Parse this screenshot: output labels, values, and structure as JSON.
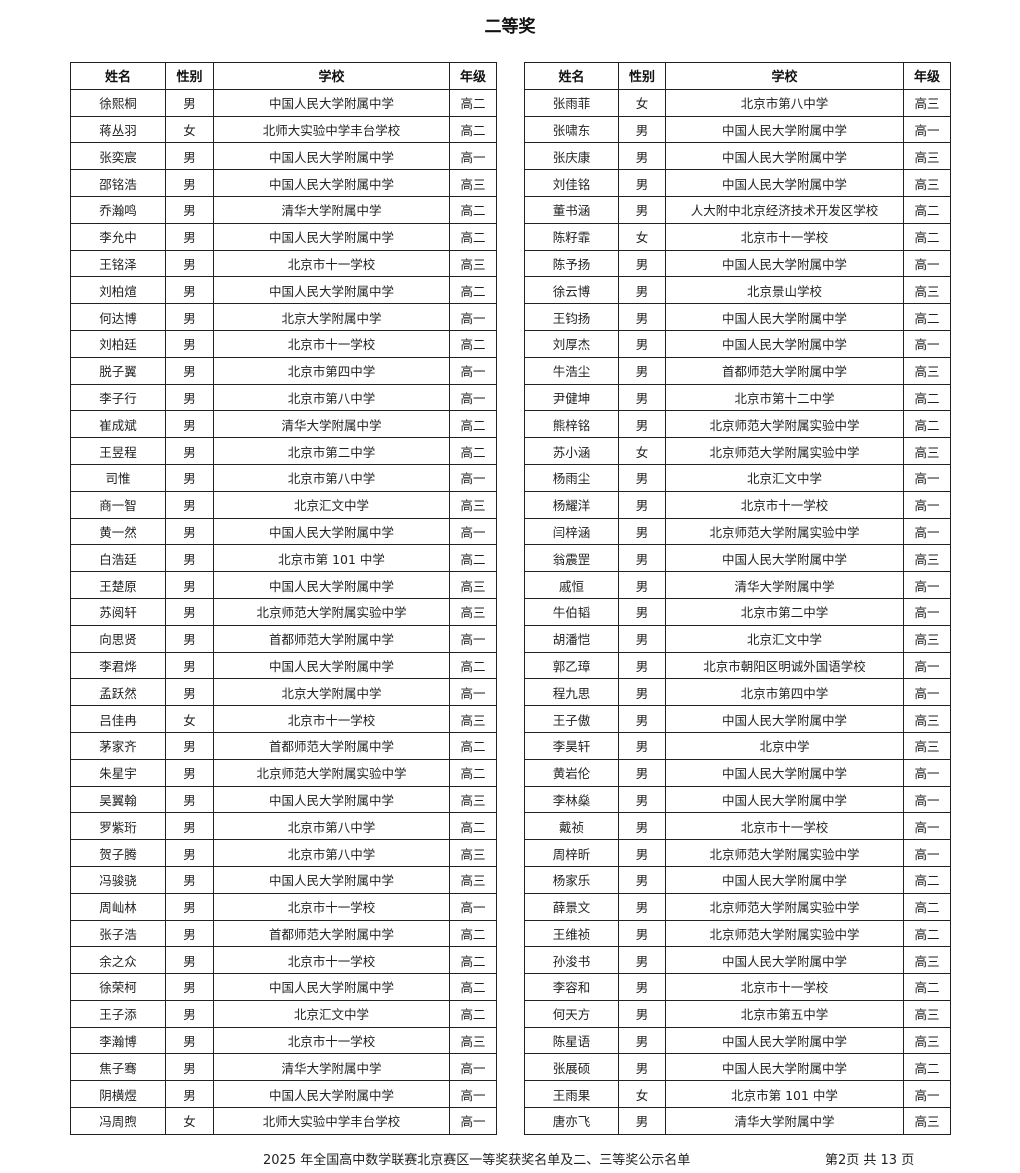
{
  "title": "二等奖",
  "headers": [
    "姓名",
    "性别",
    "学校",
    "年级"
  ],
  "left_rows": [
    [
      "徐熙桐",
      "男",
      "中国人民大学附属中学",
      "高二"
    ],
    [
      "蒋丛羽",
      "女",
      "北师大实验中学丰台学校",
      "高二"
    ],
    [
      "张奕宸",
      "男",
      "中国人民大学附属中学",
      "高一"
    ],
    [
      "邵铭浩",
      "男",
      "中国人民大学附属中学",
      "高三"
    ],
    [
      "乔瀚鸣",
      "男",
      "清华大学附属中学",
      "高二"
    ],
    [
      "李允中",
      "男",
      "中国人民大学附属中学",
      "高二"
    ],
    [
      "王铭泽",
      "男",
      "北京市十一学校",
      "高三"
    ],
    [
      "刘柏煊",
      "男",
      "中国人民大学附属中学",
      "高二"
    ],
    [
      "何达博",
      "男",
      "北京大学附属中学",
      "高一"
    ],
    [
      "刘柏廷",
      "男",
      "北京市十一学校",
      "高二"
    ],
    [
      "脱子翼",
      "男",
      "北京市第四中学",
      "高一"
    ],
    [
      "李子行",
      "男",
      "北京市第八中学",
      "高一"
    ],
    [
      "崔成斌",
      "男",
      "清华大学附属中学",
      "高二"
    ],
    [
      "王昱程",
      "男",
      "北京市第二中学",
      "高二"
    ],
    [
      "司惟",
      "男",
      "北京市第八中学",
      "高一"
    ],
    [
      "商一智",
      "男",
      "北京汇文中学",
      "高三"
    ],
    [
      "黄一然",
      "男",
      "中国人民大学附属中学",
      "高一"
    ],
    [
      "白浩廷",
      "男",
      "北京市第 101 中学",
      "高二"
    ],
    [
      "王楚原",
      "男",
      "中国人民大学附属中学",
      "高三"
    ],
    [
      "苏阅轩",
      "男",
      "北京师范大学附属实验中学",
      "高三"
    ],
    [
      "向思贤",
      "男",
      "首都师范大学附属中学",
      "高一"
    ],
    [
      "李君烨",
      "男",
      "中国人民大学附属中学",
      "高二"
    ],
    [
      "孟跃然",
      "男",
      "北京大学附属中学",
      "高一"
    ],
    [
      "吕佳冉",
      "女",
      "北京市十一学校",
      "高三"
    ],
    [
      "茅家齐",
      "男",
      "首都师范大学附属中学",
      "高二"
    ],
    [
      "朱星宇",
      "男",
      "北京师范大学附属实验中学",
      "高二"
    ],
    [
      "吴翼翰",
      "男",
      "中国人民大学附属中学",
      "高三"
    ],
    [
      "罗紫珩",
      "男",
      "北京市第八中学",
      "高二"
    ],
    [
      "贺子腾",
      "男",
      "北京市第八中学",
      "高三"
    ],
    [
      "冯骏骁",
      "男",
      "中国人民大学附属中学",
      "高三"
    ],
    [
      "周屾林",
      "男",
      "北京市十一学校",
      "高一"
    ],
    [
      "张子浩",
      "男",
      "首都师范大学附属中学",
      "高二"
    ],
    [
      "余之众",
      "男",
      "北京市十一学校",
      "高二"
    ],
    [
      "徐荣柯",
      "男",
      "中国人民大学附属中学",
      "高二"
    ],
    [
      "王子添",
      "男",
      "北京汇文中学",
      "高二"
    ],
    [
      "李瀚博",
      "男",
      "北京市十一学校",
      "高三"
    ],
    [
      "焦子骞",
      "男",
      "清华大学附属中学",
      "高一"
    ],
    [
      "阴横煜",
      "男",
      "中国人民大学附属中学",
      "高一"
    ],
    [
      "冯周煦",
      "女",
      "北师大实验中学丰台学校",
      "高一"
    ]
  ],
  "right_rows": [
    [
      "张雨菲",
      "女",
      "北京市第八中学",
      "高三"
    ],
    [
      "张啸东",
      "男",
      "中国人民大学附属中学",
      "高一"
    ],
    [
      "张庆康",
      "男",
      "中国人民大学附属中学",
      "高三"
    ],
    [
      "刘佳铭",
      "男",
      "中国人民大学附属中学",
      "高三"
    ],
    [
      "董书涵",
      "男",
      "人大附中北京经济技术开发区学校",
      "高二"
    ],
    [
      "陈籽霏",
      "女",
      "北京市十一学校",
      "高二"
    ],
    [
      "陈予扬",
      "男",
      "中国人民大学附属中学",
      "高一"
    ],
    [
      "徐云博",
      "男",
      "北京景山学校",
      "高三"
    ],
    [
      "王钧扬",
      "男",
      "中国人民大学附属中学",
      "高二"
    ],
    [
      "刘厚杰",
      "男",
      "中国人民大学附属中学",
      "高一"
    ],
    [
      "牛浩尘",
      "男",
      "首都师范大学附属中学",
      "高三"
    ],
    [
      "尹健坤",
      "男",
      "北京市第十二中学",
      "高二"
    ],
    [
      "熊梓铭",
      "男",
      "北京师范大学附属实验中学",
      "高二"
    ],
    [
      "苏小涵",
      "女",
      "北京师范大学附属实验中学",
      "高三"
    ],
    [
      "杨雨尘",
      "男",
      "北京汇文中学",
      "高一"
    ],
    [
      "杨耀洋",
      "男",
      "北京市十一学校",
      "高一"
    ],
    [
      "闫梓涵",
      "男",
      "北京师范大学附属实验中学",
      "高一"
    ],
    [
      "翁震罡",
      "男",
      "中国人民大学附属中学",
      "高三"
    ],
    [
      "戚恒",
      "男",
      "清华大学附属中学",
      "高一"
    ],
    [
      "牛伯韬",
      "男",
      "北京市第二中学",
      "高一"
    ],
    [
      "胡潘恺",
      "男",
      "北京汇文中学",
      "高三"
    ],
    [
      "郭乙璋",
      "男",
      "北京市朝阳区明诚外国语学校",
      "高一"
    ],
    [
      "程九思",
      "男",
      "北京市第四中学",
      "高一"
    ],
    [
      "王子傲",
      "男",
      "中国人民大学附属中学",
      "高三"
    ],
    [
      "李昊轩",
      "男",
      "北京中学",
      "高三"
    ],
    [
      "黄岩伦",
      "男",
      "中国人民大学附属中学",
      "高一"
    ],
    [
      "李林燊",
      "男",
      "中国人民大学附属中学",
      "高一"
    ],
    [
      "戴祯",
      "男",
      "北京市十一学校",
      "高一"
    ],
    [
      "周梓昕",
      "男",
      "北京师范大学附属实验中学",
      "高一"
    ],
    [
      "杨家乐",
      "男",
      "中国人民大学附属中学",
      "高二"
    ],
    [
      "薛景文",
      "男",
      "北京师范大学附属实验中学",
      "高二"
    ],
    [
      "王维祯",
      "男",
      "北京师范大学附属实验中学",
      "高二"
    ],
    [
      "孙浚书",
      "男",
      "中国人民大学附属中学",
      "高三"
    ],
    [
      "李容和",
      "男",
      "北京市十一学校",
      "高二"
    ],
    [
      "何天方",
      "男",
      "北京市第五中学",
      "高三"
    ],
    [
      "陈星语",
      "男",
      "中国人民大学附属中学",
      "高三"
    ],
    [
      "张展硕",
      "男",
      "中国人民大学附属中学",
      "高二"
    ],
    [
      "王雨果",
      "女",
      "北京市第 101 中学",
      "高一"
    ],
    [
      "唐亦飞",
      "男",
      "清华大学附属中学",
      "高三"
    ]
  ],
  "footer": {
    "document_title": "2025 年全国高中数学联赛北京赛区一等奖获奖名单及二、三等奖公示名单",
    "page_info": "第2页  共 13 页"
  }
}
